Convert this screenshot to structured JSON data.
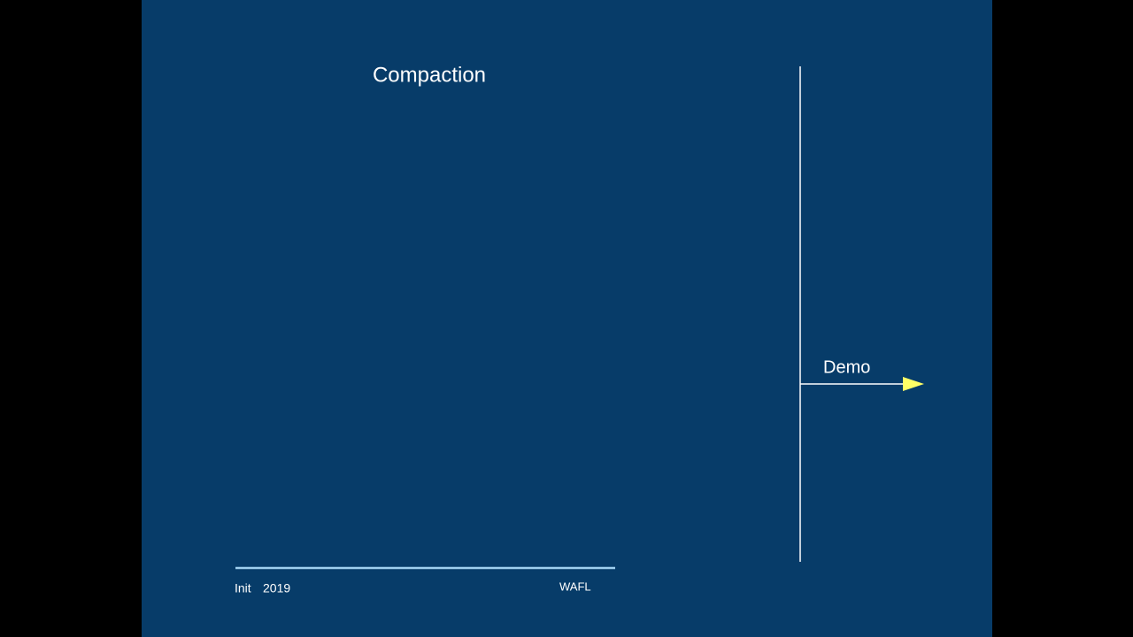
{
  "slide": {
    "title": "Compaction",
    "side_label": "Demo",
    "footer_left": "Init",
    "footer_year": "2019",
    "footer_right": "WAFL"
  }
}
